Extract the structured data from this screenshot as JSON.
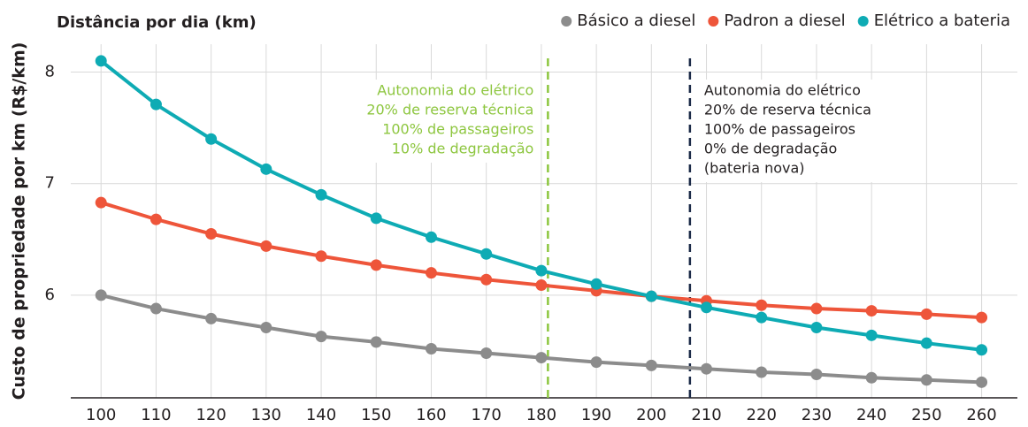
{
  "chart_data": {
    "type": "line",
    "title": "Distância por dia (km)",
    "ylabel": "Custo de propriedade por km (R$/km)",
    "x": [
      100,
      110,
      120,
      130,
      140,
      150,
      160,
      170,
      180,
      190,
      200,
      210,
      220,
      230,
      240,
      250,
      260
    ],
    "series": [
      {
        "name": "Básico a diesel",
        "color": "#8c8c8c",
        "values": [
          6.0,
          5.88,
          5.79,
          5.71,
          5.63,
          5.58,
          5.52,
          5.48,
          5.44,
          5.4,
          5.37,
          5.34,
          5.31,
          5.29,
          5.26,
          5.24,
          5.22
        ]
      },
      {
        "name": "Padron a diesel",
        "color": "#ee553a",
        "values": [
          6.83,
          6.68,
          6.55,
          6.44,
          6.35,
          6.27,
          6.2,
          6.14,
          6.09,
          6.04,
          5.99,
          5.95,
          5.91,
          5.88,
          5.86,
          5.83,
          5.8
        ]
      },
      {
        "name": "Elétrico a bateria",
        "color": "#0eabb4",
        "values": [
          8.1,
          7.71,
          7.4,
          7.13,
          6.9,
          6.69,
          6.52,
          6.37,
          6.22,
          6.1,
          5.99,
          5.89,
          5.8,
          5.71,
          5.64,
          5.57,
          5.51
        ]
      }
    ],
    "xlim": [
      94.5,
      266.5
    ],
    "xticks": [
      100,
      110,
      120,
      130,
      140,
      150,
      160,
      170,
      180,
      190,
      200,
      210,
      220,
      230,
      240,
      250,
      260
    ],
    "ylim": [
      5.08,
      8.25
    ],
    "yticks": [
      6,
      7,
      8
    ],
    "grid": true,
    "legend": "top-right",
    "reference_lines": [
      {
        "x": 181.2,
        "color": "#8dc63f",
        "label": [
          "Autonomia do elétrico",
          "20% de reserva técnica",
          "100% de passageiros",
          "10% de degradação"
        ]
      },
      {
        "x": 207,
        "color": "#1b2a47",
        "label": [
          "Autonomia do elétrico",
          "20% de reserva técnica",
          "100% de passageiros",
          "0% de degradação",
          "(bateria nova)"
        ]
      }
    ]
  }
}
